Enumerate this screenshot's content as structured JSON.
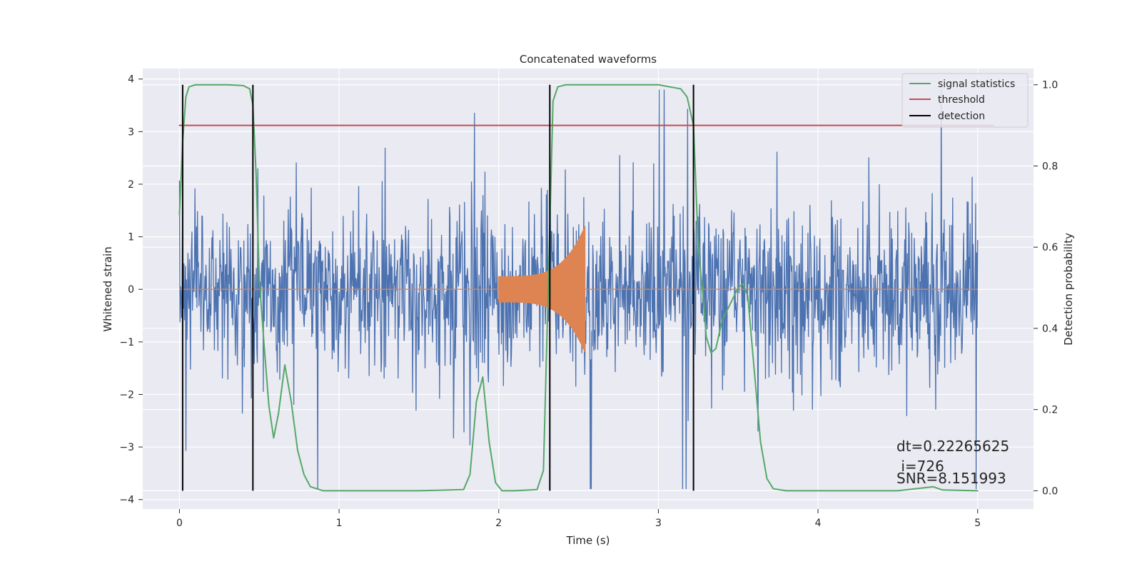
{
  "chart_data": {
    "type": "line",
    "title": "Concatenated waveforms",
    "xlabel": "Time (s)",
    "ylabel": "Whitened strain",
    "ylabel_right": "Detection probability",
    "xlim": [
      -0.23,
      5.35
    ],
    "ylim": [
      -4.18,
      4.2
    ],
    "ylim_right": [
      -0.045,
      1.04
    ],
    "xticks": [
      0,
      1,
      2,
      3,
      4,
      5
    ],
    "xtick_labels": [
      "0",
      "1",
      "2",
      "3",
      "4",
      "5"
    ],
    "yticks": [
      -4,
      -3,
      -2,
      -1,
      0,
      1,
      2,
      3,
      4
    ],
    "ytick_labels": [
      "−4",
      "−3",
      "−2",
      "−1",
      "0",
      "1",
      "2",
      "3",
      "4"
    ],
    "yticks_right": [
      0.0,
      0.2,
      0.4,
      0.6,
      0.8,
      1.0
    ],
    "ytick_labels_right": [
      "0.0",
      "0.2",
      "0.4",
      "0.6",
      "0.8",
      "1.0"
    ],
    "grid": true,
    "legend_position": "top-right",
    "legend": [
      {
        "label": "signal statistics",
        "color": "#55a868"
      },
      {
        "label": "threshold",
        "color": "#c44e52"
      },
      {
        "label": "detection",
        "color": "#000000"
      }
    ],
    "series": [
      {
        "kind": "whitened-noise",
        "color": "#4c72b0",
        "x_range": [
          0,
          5
        ],
        "sigma": 0.75,
        "samples": 1600,
        "seed": 7
      },
      {
        "kind": "injected-chirp",
        "color": "#dd8452",
        "x_range": [
          0,
          5
        ],
        "chirp_x_range": [
          2.0,
          2.54
        ],
        "chirp_amplitude_start": 0.25,
        "chirp_amplitude_end": 1.2
      },
      {
        "name": "signal statistics",
        "axis": "right",
        "color": "#55a868",
        "x": [
          0.0,
          0.02,
          0.04,
          0.06,
          0.1,
          0.2,
          0.3,
          0.4,
          0.44,
          0.46,
          0.48,
          0.5,
          0.53,
          0.56,
          0.59,
          0.62,
          0.66,
          0.7,
          0.74,
          0.78,
          0.82,
          0.9,
          1.2,
          1.5,
          1.78,
          1.82,
          1.86,
          1.9,
          1.94,
          1.98,
          2.02,
          2.1,
          2.24,
          2.28,
          2.31,
          2.34,
          2.37,
          2.42,
          2.6,
          3.0,
          3.14,
          3.18,
          3.22,
          3.25,
          3.28,
          3.3,
          3.33,
          3.36,
          3.4,
          3.45,
          3.5,
          3.53,
          3.56,
          3.6,
          3.64,
          3.68,
          3.72,
          3.8,
          4.0,
          4.5,
          4.68,
          4.72,
          4.78,
          5.0
        ],
        "values": [
          0.68,
          0.86,
          0.97,
          0.995,
          1.0,
          1.0,
          1.0,
          0.998,
          0.99,
          0.95,
          0.78,
          0.52,
          0.36,
          0.21,
          0.13,
          0.19,
          0.31,
          0.22,
          0.1,
          0.04,
          0.01,
          0.0,
          0.0,
          0.0,
          0.003,
          0.04,
          0.22,
          0.28,
          0.12,
          0.02,
          0.0,
          0.0,
          0.003,
          0.05,
          0.5,
          0.96,
          0.995,
          1.0,
          1.0,
          1.0,
          0.99,
          0.97,
          0.9,
          0.6,
          0.48,
          0.38,
          0.34,
          0.35,
          0.42,
          0.46,
          0.5,
          0.51,
          0.48,
          0.3,
          0.12,
          0.03,
          0.005,
          0.0,
          0.0,
          0.0,
          0.008,
          0.01,
          0.002,
          0.0
        ]
      },
      {
        "name": "threshold",
        "axis": "right",
        "color": "#c44e52",
        "x": [
          0,
          5.1
        ],
        "values": [
          0.9,
          0.9
        ]
      }
    ],
    "detections": {
      "color": "#000000",
      "x": [
        0.02,
        0.46,
        2.32,
        3.22
      ],
      "prob_range": [
        0.0,
        1.0
      ]
    },
    "annotations": {
      "dt": "dt=0.22265625",
      "i": " i=726",
      "snr": "SNR=8.151993"
    }
  }
}
